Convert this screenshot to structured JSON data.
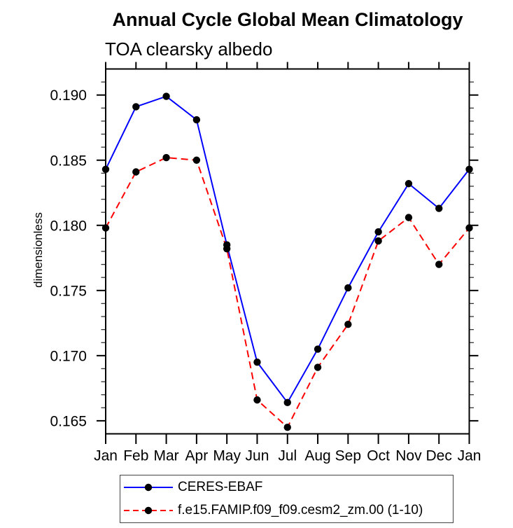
{
  "page": {
    "background": "#ffffff",
    "text_color": "#000000"
  },
  "chart_data": {
    "type": "line",
    "title": "Annual Cycle Global Mean Climatology",
    "subtitle": "TOA clearsky albedo",
    "xlabel": "",
    "ylabel": "dimensionless",
    "categories": [
      "Jan",
      "Feb",
      "Mar",
      "Apr",
      "May",
      "Jun",
      "Jul",
      "Aug",
      "Sep",
      "Oct",
      "Nov",
      "Dec",
      "Jan"
    ],
    "ylim": [
      0.164,
      0.192
    ],
    "ytick_major_values": [
      0.165,
      0.17,
      0.175,
      0.18,
      0.185,
      0.19
    ],
    "ytick_major_labels": [
      "0.165",
      "0.170",
      "0.175",
      "0.180",
      "0.185",
      "0.190"
    ],
    "ytick_minor_step": 0.001,
    "grid": false,
    "legend_position": "bottom",
    "marker": {
      "shape": "circle",
      "color": "#000000"
    },
    "series": [
      {
        "name": "CERES-EBAF",
        "color": "#0000ff",
        "style": "solid",
        "values": [
          0.1843,
          0.1891,
          0.1899,
          0.1881,
          0.1785,
          0.1695,
          0.1664,
          0.1705,
          0.1752,
          0.1795,
          0.1832,
          0.1813,
          0.1843
        ]
      },
      {
        "name": "f.e15.FAMIP.f09_f09.cesm2_zm.00 (1-10)",
        "color": "#ff0000",
        "style": "dashed",
        "values": [
          0.1798,
          0.1841,
          0.1852,
          0.185,
          0.1782,
          0.1666,
          0.1645,
          0.1691,
          0.1724,
          0.1788,
          0.1806,
          0.177,
          0.1798
        ]
      }
    ]
  }
}
